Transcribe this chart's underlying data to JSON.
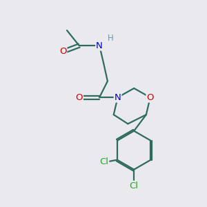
{
  "bg_color": "#eaeaee",
  "bond_color": "#2d6b5e",
  "bond_width": 1.6,
  "atom_colors": {
    "O": "#cc0000",
    "N": "#0000cc",
    "Cl": "#22aa22",
    "H": "#6699aa",
    "C": "#2d6b5e"
  },
  "font_size": 9.5,
  "fig_size": [
    3.0,
    3.0
  ],
  "dpi": 100
}
